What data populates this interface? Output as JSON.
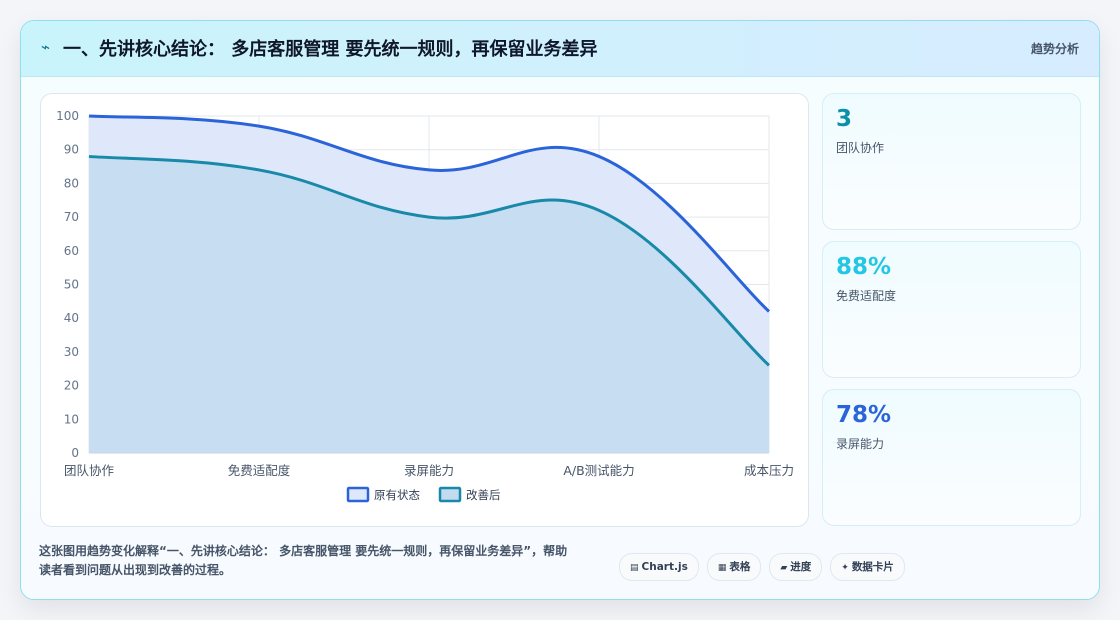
{
  "header": {
    "icon": "bolt-icon",
    "title": "一、先讲核心结论： 多店客服管理 要先统一规则，再保留业务差异",
    "tag": "趋势分析"
  },
  "chart_data": {
    "type": "area",
    "categories": [
      "团队协作",
      "免费适配度",
      "录屏能力",
      "A/B测试能力",
      "成本压力"
    ],
    "series": [
      {
        "name": "原有状态",
        "values": [
          100,
          97,
          84,
          88,
          42
        ],
        "color": "#2b63d8",
        "fill": "#dfe8fb"
      },
      {
        "name": "改善后",
        "values": [
          88,
          84,
          70,
          72,
          26
        ],
        "color": "#1889a8",
        "fill": "#c3dbf0"
      }
    ],
    "ylim": [
      0,
      100
    ],
    "yticks": [
      0,
      10,
      20,
      30,
      40,
      50,
      60,
      70,
      80,
      90,
      100
    ],
    "grid": true,
    "legend_position": "bottom"
  },
  "kpis": [
    {
      "value": "3",
      "label": "团队协作",
      "color": "#0e8fa8"
    },
    {
      "value": "88%",
      "label": "免费适配度",
      "color": "#22c7e3"
    },
    {
      "value": "78%",
      "label": "录屏能力",
      "color": "#2b63d8"
    }
  ],
  "footer": {
    "line1": "这张图用趋势变化解释“一、先讲核心结论： 多店客服管理 要先统一规则，再保留业务差异”，帮助",
    "line2": "读者看到问题从出现到改善的过程。"
  },
  "pills": [
    {
      "icon": "chart-icon",
      "glyph": "▤",
      "label": "Chart.js"
    },
    {
      "icon": "table-icon",
      "glyph": "▦",
      "label": "表格"
    },
    {
      "icon": "progress-icon",
      "glyph": "▰",
      "label": "进度"
    },
    {
      "icon": "sparkle-icon",
      "glyph": "✦",
      "label": "数据卡片"
    }
  ]
}
